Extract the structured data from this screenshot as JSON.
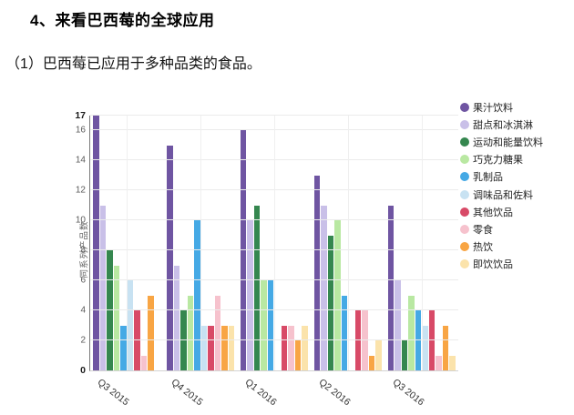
{
  "header": {
    "title": "4、来看巴西莓的全球应用",
    "subtitle": "（1）巴西莓已应用于多种品类的食品。"
  },
  "chart_data": {
    "type": "bar",
    "title": "",
    "xlabel": "",
    "ylabel": "同系列产品数",
    "ylim": [
      0,
      17
    ],
    "yticks": [
      0,
      2,
      4,
      6,
      8,
      10,
      12,
      14,
      16,
      17
    ],
    "bold_yticks": [
      0,
      17
    ],
    "grid": true,
    "legend_position": "right",
    "categories": [
      "Q3 2015",
      "Q4 2015",
      "Q1 2016",
      "Q2 2016",
      "Q3 2016"
    ],
    "series": [
      {
        "name": "果汁饮料",
        "color": "#6f55a2",
        "values": [
          17,
          15,
          16,
          13,
          11
        ]
      },
      {
        "name": "甜点和冰淇淋",
        "color": "#c9c0e8",
        "values": [
          11,
          7,
          10,
          11,
          6
        ]
      },
      {
        "name": "运动和能量饮料",
        "color": "#35874f",
        "values": [
          8,
          4,
          11,
          9,
          2
        ]
      },
      {
        "name": "巧克力糖果",
        "color": "#b9e8a2",
        "values": [
          7,
          5,
          6,
          10,
          5
        ]
      },
      {
        "name": "乳制品",
        "color": "#45a9e5",
        "values": [
          3,
          10,
          6,
          5,
          4
        ]
      },
      {
        "name": "调味品和佐料",
        "color": "#c8e2f2",
        "values": [
          6,
          3,
          0,
          0,
          3
        ]
      },
      {
        "name": "其他饮品",
        "color": "#d84a67",
        "values": [
          4,
          3,
          3,
          4,
          4
        ]
      },
      {
        "name": "零食",
        "color": "#f6c2cd",
        "values": [
          1,
          5,
          3,
          4,
          1
        ]
      },
      {
        "name": "热饮",
        "color": "#f8a544",
        "values": [
          5,
          3,
          2,
          1,
          3
        ]
      },
      {
        "name": "即饮饮品",
        "color": "#fbe3ab",
        "values": [
          0,
          3,
          3,
          2,
          1
        ]
      }
    ]
  }
}
